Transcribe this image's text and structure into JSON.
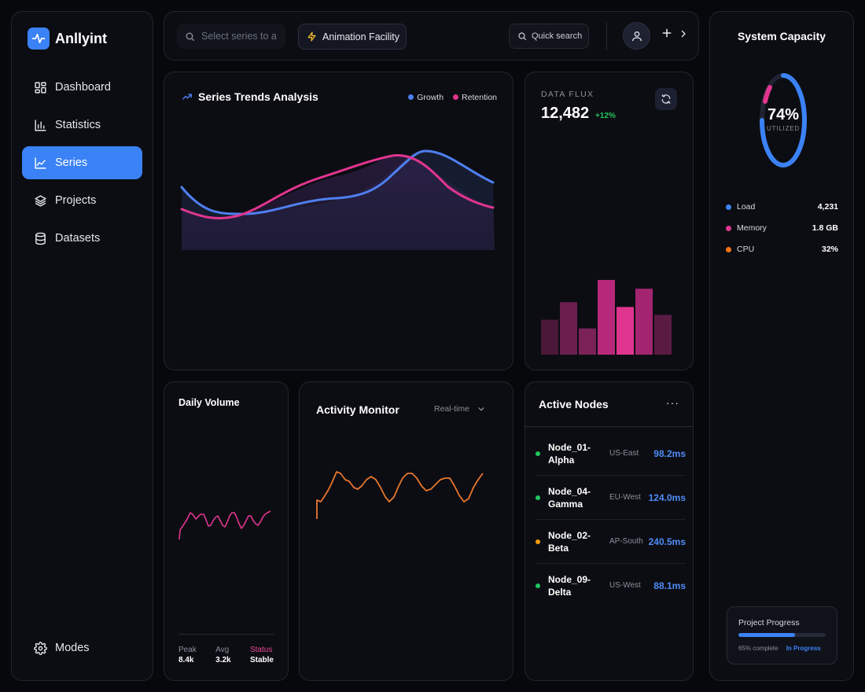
{
  "app": {
    "name": "Anllyint"
  },
  "sidebar": {
    "items": [
      {
        "label": "Dashboard",
        "icon": "dashboard-icon",
        "active": false
      },
      {
        "label": "Statistics",
        "icon": "bar-chart-icon",
        "active": false
      },
      {
        "label": "Series",
        "icon": "line-chart-icon",
        "active": true
      },
      {
        "label": "Projects",
        "icon": "layers-icon",
        "active": false
      },
      {
        "label": "Datasets",
        "icon": "database-icon",
        "active": false
      }
    ],
    "bottom_item": {
      "label": "Modes",
      "icon": "gear-icon"
    }
  },
  "topbar": {
    "search_placeholder": "Select series to a",
    "animation_label": "Animation Facility",
    "quick_search_label": "Quick search"
  },
  "trends": {
    "title": "Series Trends Analysis",
    "legend": [
      {
        "name": "Growth",
        "color": "#4f7ff0"
      },
      {
        "name": "Retention",
        "color": "#e0358f"
      }
    ]
  },
  "flux": {
    "label": "DATA FLUX",
    "value": "12,482",
    "change": "+12%",
    "bars": [
      44,
      66,
      33,
      94,
      60,
      83,
      50
    ]
  },
  "capacity": {
    "title": "System Capacity",
    "percent": "74%",
    "percent_value": 74,
    "sub": "UTILIZED",
    "metrics": [
      {
        "label": "Load",
        "value": "4,231",
        "color": "#3b82f6"
      },
      {
        "label": "Memory",
        "value": "1.8 GB",
        "color": "#e0358f"
      },
      {
        "label": "CPU",
        "value": "32%",
        "color": "#f97316"
      }
    ],
    "progress": {
      "title": "Project Progress",
      "value": 65,
      "text": "65% complete",
      "status": "In Progress"
    }
  },
  "daily": {
    "title": "Daily Volume",
    "stats": [
      {
        "key": "Peak",
        "value": "8.4k"
      },
      {
        "key": "Avg",
        "value": "3.2k"
      },
      {
        "key": "Status",
        "value": "Stable"
      }
    ]
  },
  "activity": {
    "title": "Activity Monitor",
    "select_value": "Real-time"
  },
  "nodes": {
    "title": "Active Nodes",
    "more_label": "···",
    "rows": [
      {
        "name": "Node_01-Alpha",
        "region": "US-East",
        "latency": "98.2ms",
        "status_color": "#22c55e"
      },
      {
        "name": "Node_04-Gamma",
        "region": "EU-West",
        "latency": "124.0ms",
        "status_color": "#22c55e"
      },
      {
        "name": "Node_02-Beta",
        "region": "AP-South",
        "latency": "240.5ms",
        "status_color": "#f59e0b"
      },
      {
        "name": "Node_09-Delta",
        "region": "US-West",
        "latency": "88.1ms",
        "status_color": "#22c55e"
      }
    ]
  },
  "colors": {
    "accent": "#3b82f6",
    "pink": "#e0358f",
    "orange": "#e8762c",
    "green": "#22c55e"
  }
}
